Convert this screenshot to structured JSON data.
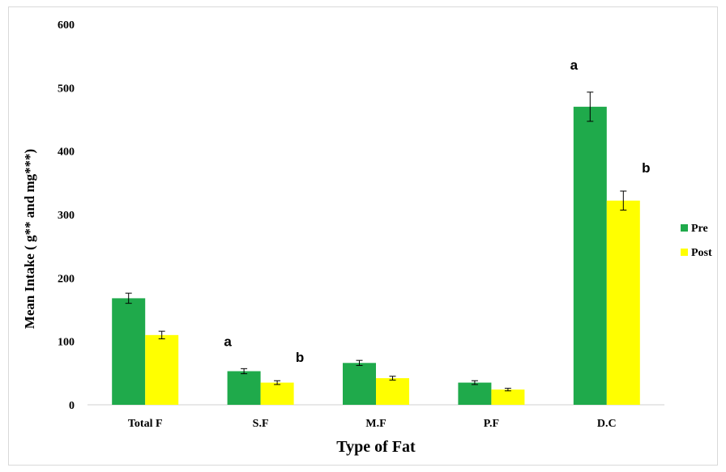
{
  "chart_data": {
    "type": "bar",
    "title": "",
    "xlabel": "Type of Fat",
    "ylabel": "Mean Intake ( g** and mg***)",
    "categories": [
      "Total F",
      "S.F",
      "M.F",
      "P.F",
      "D.C"
    ],
    "ylim": [
      0,
      600
    ],
    "yticks": [
      0,
      100,
      200,
      300,
      400,
      500,
      600
    ],
    "grid": false,
    "legend": "right",
    "series": [
      {
        "name": "Pre",
        "color": "#1faa4b",
        "values": [
          168,
          53,
          66,
          35,
          470
        ],
        "errors": [
          8,
          4,
          4,
          3,
          23
        ]
      },
      {
        "name": "Post",
        "color": "#ffff00",
        "values": [
          110,
          35,
          42,
          24,
          322
        ],
        "errors": [
          6,
          3,
          3,
          2,
          15
        ]
      }
    ],
    "annotations": [
      {
        "text": "a",
        "category": "S.F",
        "series": "Pre"
      },
      {
        "text": "b",
        "category": "S.F",
        "series": "Post"
      },
      {
        "text": "a",
        "category": "D.C",
        "series": "Pre"
      },
      {
        "text": "b",
        "category": "D.C",
        "series": "Post"
      }
    ]
  }
}
